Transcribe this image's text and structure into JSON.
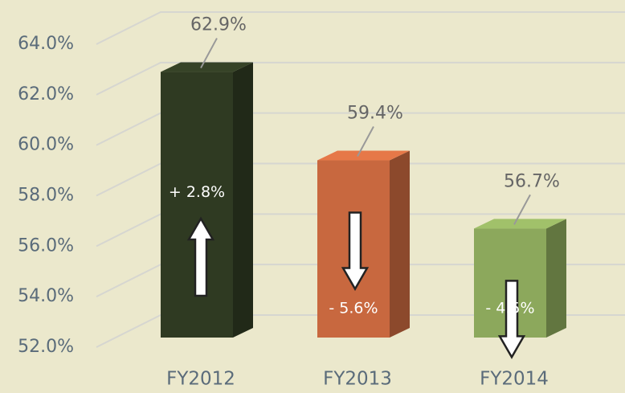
{
  "chart_data": {
    "type": "bar3d",
    "categories": [
      "FY2012",
      "FY2013",
      "FY2014"
    ],
    "values": [
      62.9,
      59.4,
      56.7
    ],
    "value_labels": [
      "62.9%",
      "59.4%",
      "56.7%"
    ],
    "colors": [
      "#2f3a22",
      "#c8683f",
      "#8ca85c"
    ],
    "change_values": [
      2.8,
      -5.6,
      -4.5
    ],
    "change_labels": [
      "+ 2.8%",
      "- 5.6%",
      "- 4.5%"
    ],
    "ylim": [
      52,
      64
    ],
    "yticks": [
      {
        "value": 52,
        "label": "52.0%"
      },
      {
        "value": 54,
        "label": "54.0%"
      },
      {
        "value": 56,
        "label": "56.0%"
      },
      {
        "value": 58,
        "label": "58.0%"
      },
      {
        "value": 60,
        "label": "60.0%"
      },
      {
        "value": 62,
        "label": "62.0%"
      },
      {
        "value": 64,
        "label": "64.0%"
      }
    ],
    "grid": true
  }
}
